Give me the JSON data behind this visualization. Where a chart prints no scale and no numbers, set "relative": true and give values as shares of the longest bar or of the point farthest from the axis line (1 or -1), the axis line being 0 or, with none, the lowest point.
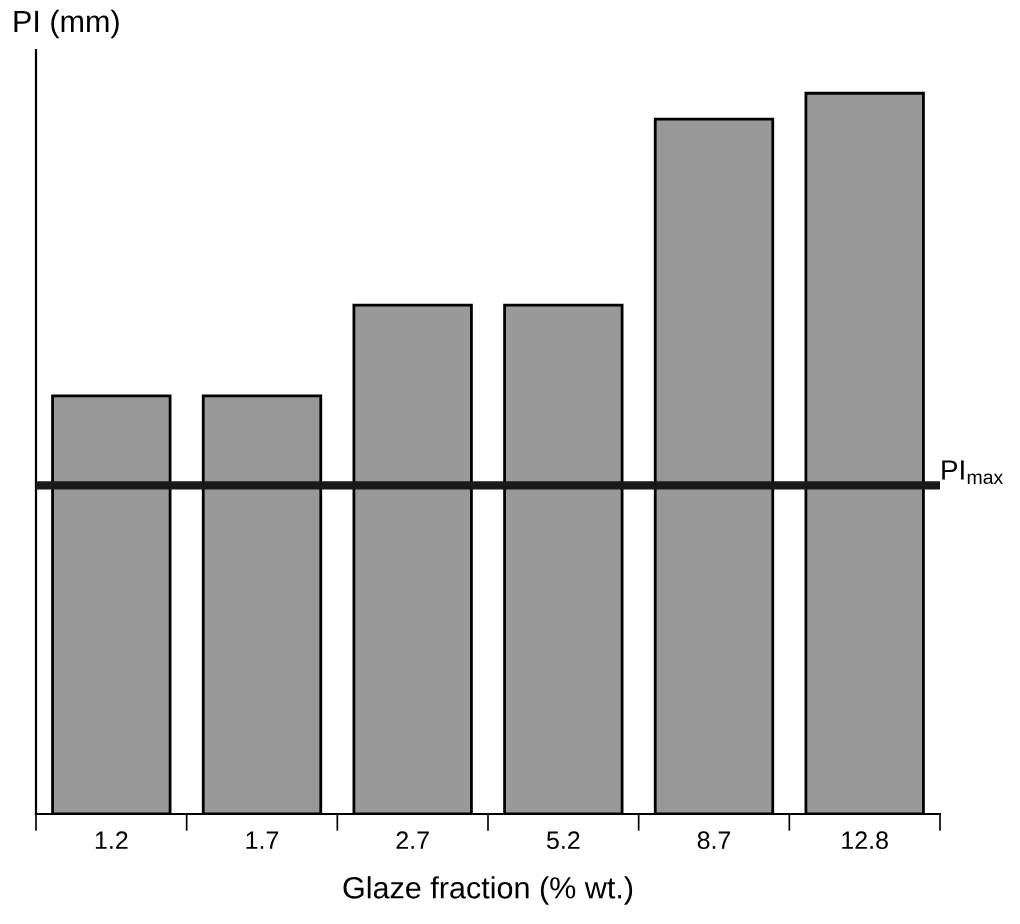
{
  "chart_data": {
    "type": "bar",
    "relative": true,
    "xlabel": "Glaze fraction (% wt.)",
    "ylabel": "PI (mm)",
    "categories": [
      "1.2",
      "1.7",
      "2.7",
      "5.2",
      "8.7",
      "12.8"
    ],
    "values": [
      0.58,
      0.58,
      0.706,
      0.706,
      0.964,
      1
    ],
    "color": "#999999",
    "ref_lines": [
      {
        "axis": "y",
        "value": 0.456,
        "label": "PI$_{max}$",
        "color": "#1a1a1a",
        "line_style": "solid"
      }
    ],
    "grid": false,
    "legend": false
  }
}
